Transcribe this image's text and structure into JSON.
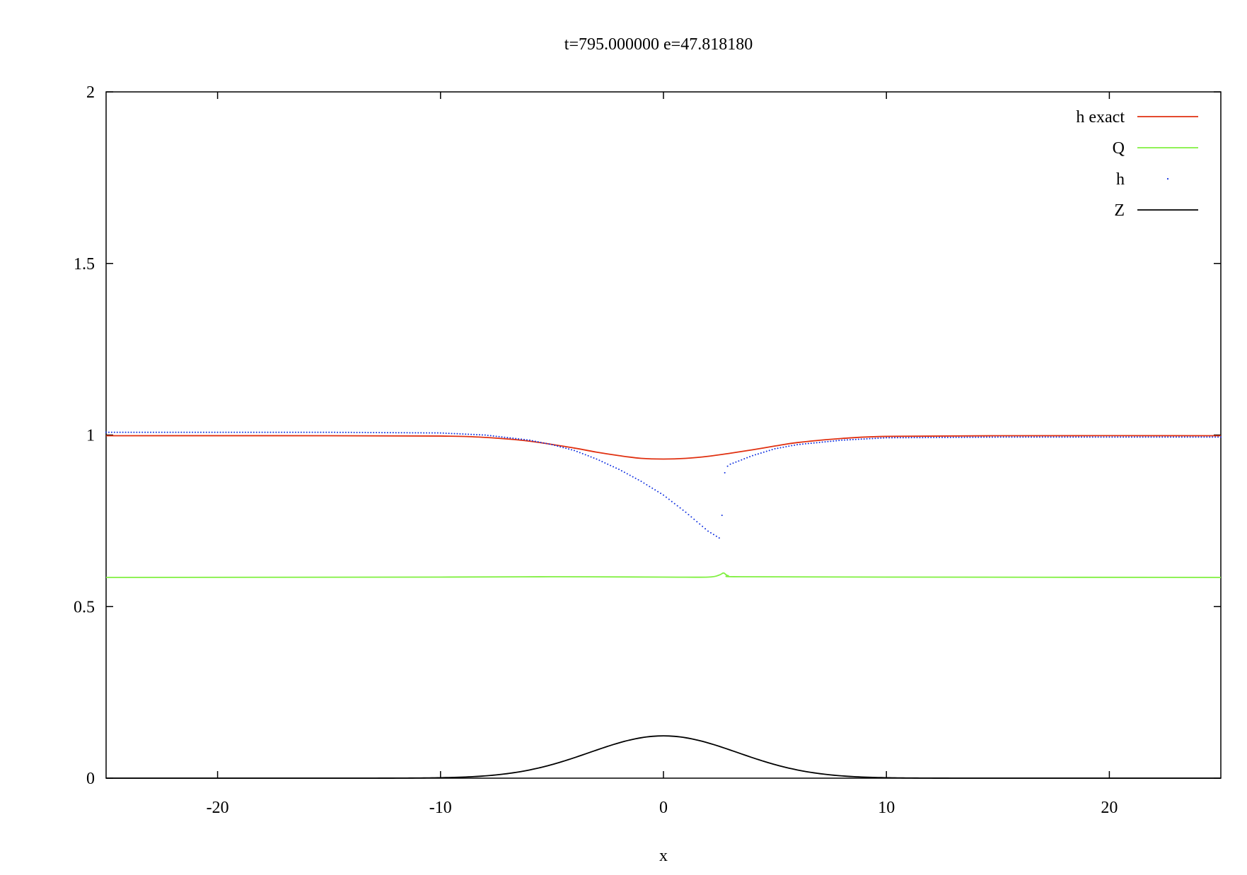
{
  "chart_data": {
    "type": "line",
    "title": "t=795.000000  e=47.818180",
    "xlabel": "x",
    "ylabel": "",
    "xlim": [
      -25,
      25
    ],
    "ylim": [
      0,
      2
    ],
    "x_ticks": [
      -20,
      -10,
      0,
      10,
      20
    ],
    "y_ticks": [
      0,
      0.5,
      1,
      1.5,
      2
    ],
    "x_tick_labels": [
      "-20",
      "-10",
      "0",
      "10",
      "20"
    ],
    "y_tick_labels": [
      "0",
      "0.5",
      "1",
      "1.5",
      "2"
    ],
    "grid": false,
    "legend": "top-right",
    "series": [
      {
        "name": "h exact",
        "style": "line",
        "color": "#e03010",
        "x": [
          -25,
          -15,
          -10,
          -8,
          -6,
          -4,
          -3,
          -2,
          -1,
          0,
          1,
          2,
          3,
          4,
          5,
          6,
          8,
          10,
          15,
          25
        ],
        "y": [
          0.998,
          0.998,
          0.997,
          0.993,
          0.982,
          0.962,
          0.95,
          0.94,
          0.932,
          0.93,
          0.932,
          0.938,
          0.947,
          0.957,
          0.968,
          0.978,
          0.99,
          0.996,
          0.998,
          0.998
        ]
      },
      {
        "name": "Q",
        "style": "line",
        "color": "#80f040",
        "x": [
          -25,
          -10,
          -5,
          0,
          2,
          2.5,
          2.7,
          2.9,
          3.5,
          10,
          25
        ],
        "y": [
          0.585,
          0.586,
          0.587,
          0.586,
          0.586,
          0.592,
          0.598,
          0.59,
          0.587,
          0.586,
          0.585
        ],
        "note": ""
      },
      {
        "name": "h",
        "style": "points",
        "color": "#1030e0",
        "x": [
          -25,
          -15,
          -10,
          -8,
          -6,
          -5,
          -4,
          -3,
          -2,
          -1,
          0,
          1,
          2,
          2.5,
          2.6,
          2.65,
          2.75,
          2.85,
          3,
          4,
          5,
          6,
          8,
          10,
          15,
          25
        ],
        "y": [
          1.008,
          1.008,
          1.006,
          1.0,
          0.985,
          0.972,
          0.955,
          0.93,
          0.9,
          0.865,
          0.825,
          0.775,
          0.72,
          0.7,
          0.712,
          0.82,
          0.89,
          0.908,
          0.915,
          0.94,
          0.96,
          0.972,
          0.985,
          0.992,
          0.994,
          0.994
        ]
      },
      {
        "name": "Z",
        "style": "line",
        "color": "#000000",
        "x": [],
        "y": []
      }
    ]
  }
}
